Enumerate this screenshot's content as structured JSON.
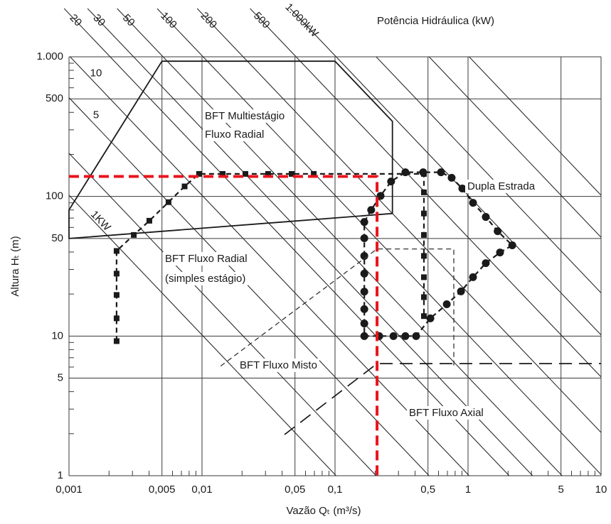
{
  "chart_data": {
    "type": "line",
    "title": "Potência Hidráulica (kW)",
    "x_label": "Vazão Qₜ (m³/s)",
    "y_label": "Altura Hₜ (m)",
    "xlog": true,
    "ylog": true,
    "grid": true,
    "xlim": [
      0.001,
      10
    ],
    "ylim": [
      1,
      1000
    ],
    "xticks": [
      {
        "value": 0.001,
        "label": "0,001"
      },
      {
        "value": 0.005,
        "label": "0,005"
      },
      {
        "value": 0.01,
        "label": "0,01"
      },
      {
        "value": 0.05,
        "label": "0,05"
      },
      {
        "value": 0.1,
        "label": "0,1"
      },
      {
        "value": 0.5,
        "label": "0,5"
      },
      1,
      5,
      10
    ],
    "yticks": [
      1,
      5,
      10,
      50,
      100,
      500,
      {
        "value": 1000,
        "label": "1.000"
      }
    ],
    "xminorticks": [
      0.002,
      0.003,
      0.004,
      0.006,
      0.007,
      0.008,
      0.009,
      0.02,
      0.03,
      0.04,
      0.06,
      0.07,
      0.08,
      0.09,
      0.2,
      0.3,
      0.4,
      0.6,
      0.7,
      0.8,
      0.9,
      2,
      3,
      4,
      6,
      7,
      8,
      9
    ],
    "yminorticks": [
      2,
      3,
      4,
      6,
      7,
      8,
      9,
      20,
      30,
      40,
      60,
      70,
      80,
      90,
      200,
      300,
      400,
      600,
      700,
      800,
      900
    ],
    "power_lines": [
      {
        "value": 1,
        "label": "1KW"
      },
      5,
      10,
      20,
      30,
      50,
      100,
      200,
      500,
      {
        "value": 1000,
        "label": "1.000kW"
      }
    ],
    "power_lines_unlabeled": [
      2,
      2000,
      5000,
      10000
    ],
    "annotations": [
      "BFT Multiestágio",
      "Fluxo Radial",
      "Dupla Estrada",
      "BFT Fluxo Radial",
      "(simples estágio)",
      "BFT Fluxo Misto",
      "BFT Fluxo Axial"
    ],
    "series": [
      {
        "color": "#1a1a1a",
        "line": "solid",
        "closed": true,
        "x": [
          0.001,
          0.001,
          0.005,
          0.1,
          0.27,
          0.27
        ],
        "values": [
          50,
          80,
          930,
          930,
          345,
          75.5
        ]
      },
      {
        "color": "#1a1a1a",
        "line": "dashed",
        "marker": "square",
        "x": [
          0.00228,
          0.00228,
          0.00228,
          0.00228,
          0.00228,
          0.00307,
          0.00402,
          0.0056,
          0.0074,
          0.0095,
          0.0143,
          0.0212,
          0.0314,
          0.0472,
          0.0692,
          0.466,
          0.466,
          0.466,
          0.466,
          0.466,
          0.466,
          0.466,
          0.466
        ],
        "values": [
          9.2,
          13.4,
          19.7,
          28,
          40.7,
          53,
          67,
          91,
          118,
          145,
          145,
          145,
          145,
          145,
          145,
          145,
          107,
          75.5,
          53,
          37.5,
          26.4,
          19,
          13.9
        ]
      },
      {
        "color": "#1a1a1a",
        "line": "dashed",
        "marker": "circle",
        "closed": true,
        "x": [
          0.166,
          0.215,
          0.275,
          0.338,
          0.407,
          0.521,
          0.692,
          0.885,
          1.09,
          1.36,
          1.74,
          2.15,
          1.67,
          1.36,
          1.09,
          0.906,
          0.753,
          0.626,
          0.46,
          0.338,
          0.264,
          0.22,
          0.187,
          0.166,
          0.166,
          0.166,
          0.166,
          0.166,
          0.166,
          0.166
        ],
        "values": [
          10,
          10,
          10,
          10,
          10,
          13.4,
          16.9,
          20.9,
          26.4,
          33.3,
          39.7,
          44.7,
          56.4,
          71.3,
          90,
          114,
          136,
          149,
          149,
          149,
          128,
          101,
          80,
          65.6,
          50.2,
          37.5,
          28,
          20.8,
          15.6,
          12.3
        ]
      },
      {
        "color": "#333333",
        "line": "dashed",
        "x": [
          0.0138,
          0.207,
          0.782,
          0.782
        ],
        "values": [
          6.1,
          42.1,
          42.1,
          5.8
        ]
      },
      {
        "color": "#1a1a1a",
        "line": "long-dashed",
        "x": [
          0.0417,
          0.207,
          10
        ],
        "values": [
          1.97,
          6.35,
          6.35
        ]
      },
      {
        "color": "#e8141c",
        "line": "heavy-dashed",
        "x": [
          0.001,
          0.207,
          0.207
        ],
        "values": [
          139,
          139,
          1
        ]
      }
    ]
  }
}
